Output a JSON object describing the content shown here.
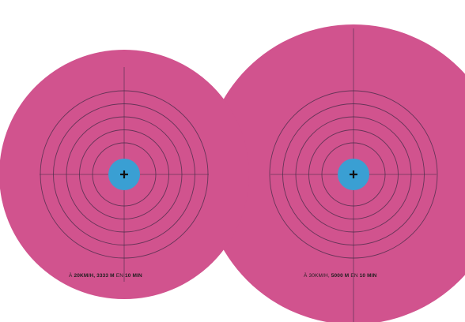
{
  "colors": {
    "disc": "#d1538e",
    "center": "#3a9fd3",
    "rings": "#4a2d4a",
    "background": "#ffffff",
    "text": "#1e1e1e"
  },
  "diagrams": [
    {
      "id": "small",
      "speed_prefix": "À",
      "speed": "20KM/H,",
      "distance": "3333 M",
      "connector": "EN",
      "duration": "10 MIN",
      "rings": 5
    },
    {
      "id": "large",
      "speed_prefix": "À",
      "speed": "30KM/H,",
      "distance": "5000 M",
      "connector": "EN",
      "duration": "10 MIN",
      "rings": 5
    }
  ],
  "icons": [
    "crosshair-icon"
  ]
}
